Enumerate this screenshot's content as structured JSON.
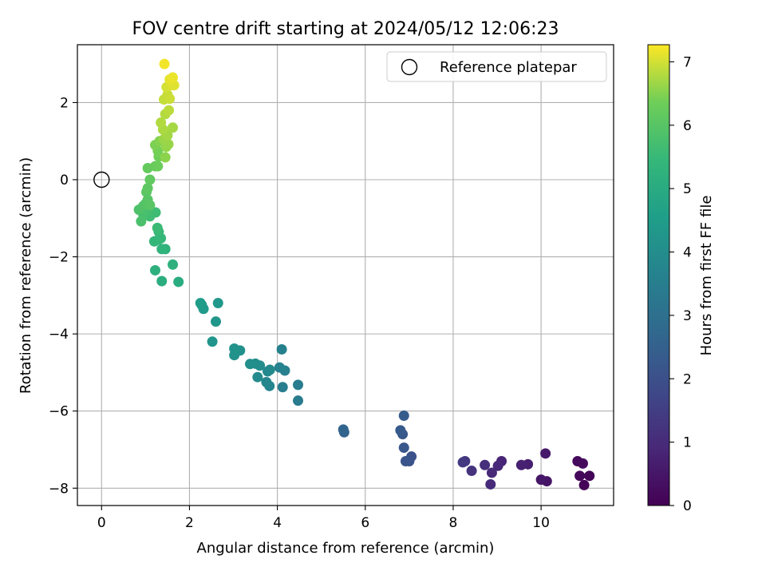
{
  "chart_data": {
    "type": "scatter",
    "title": "FOV centre drift starting at 2024/05/12 12:06:23",
    "xlabel": "Angular distance from reference (arcmin)",
    "ylabel": "Rotation from reference (arcmin)",
    "xlim": [
      -0.55,
      11.65
    ],
    "ylim": [
      -8.45,
      3.5
    ],
    "xticks": [
      0,
      2,
      4,
      6,
      8,
      10
    ],
    "yticks": [
      -8,
      -6,
      -4,
      -2,
      0,
      2
    ],
    "grid": true,
    "legend": {
      "placement": "upper-right",
      "entries": [
        "Reference platepar"
      ]
    },
    "reference_point": {
      "label": "Reference platepar",
      "x": 0,
      "y": 0
    },
    "colorbar": {
      "label": "Hours from first FF file",
      "colormap": "viridis",
      "range": [
        0,
        7.27
      ],
      "ticks": [
        0,
        1,
        2,
        3,
        4,
        5,
        6,
        7
      ]
    },
    "series": [
      {
        "columns": [
          "x",
          "y",
          "hours"
        ],
        "points": [
          [
            10.98,
            -7.92,
            0.05
          ],
          [
            11.1,
            -7.68,
            0.1
          ],
          [
            10.88,
            -7.68,
            0.15
          ],
          [
            10.83,
            -7.3,
            0.2
          ],
          [
            10.95,
            -7.36,
            0.25
          ],
          [
            10.13,
            -7.82,
            0.45
          ],
          [
            10.0,
            -7.78,
            0.5
          ],
          [
            10.1,
            -7.1,
            0.55
          ],
          [
            9.7,
            -7.38,
            0.7
          ],
          [
            9.55,
            -7.4,
            0.75
          ],
          [
            9.1,
            -7.3,
            0.85
          ],
          [
            9.02,
            -7.42,
            0.9
          ],
          [
            8.88,
            -7.6,
            0.95
          ],
          [
            8.85,
            -7.9,
            1.0
          ],
          [
            8.72,
            -7.4,
            1.1
          ],
          [
            8.42,
            -7.55,
            1.2
          ],
          [
            8.27,
            -7.3,
            1.3
          ],
          [
            8.22,
            -7.33,
            1.35
          ],
          [
            7.05,
            -7.18,
            2.05
          ],
          [
            7.0,
            -7.3,
            2.1
          ],
          [
            6.92,
            -7.3,
            2.15
          ],
          [
            6.88,
            -6.95,
            2.2
          ],
          [
            6.85,
            -6.6,
            2.25
          ],
          [
            6.8,
            -6.5,
            2.3
          ],
          [
            6.88,
            -6.12,
            2.35
          ],
          [
            5.52,
            -6.55,
            2.6
          ],
          [
            5.5,
            -6.48,
            2.65
          ],
          [
            4.47,
            -5.73,
            3.4
          ],
          [
            4.47,
            -5.32,
            3.45
          ],
          [
            4.12,
            -5.38,
            3.5
          ],
          [
            4.17,
            -4.95,
            3.55
          ],
          [
            4.1,
            -4.4,
            3.6
          ],
          [
            4.05,
            -4.87,
            3.65
          ],
          [
            3.82,
            -5.35,
            3.7
          ],
          [
            3.75,
            -5.25,
            3.75
          ],
          [
            3.78,
            -4.97,
            3.8
          ],
          [
            3.83,
            -4.93,
            3.85
          ],
          [
            3.55,
            -5.12,
            3.9
          ],
          [
            3.6,
            -4.82,
            3.95
          ],
          [
            3.5,
            -4.77,
            4.0
          ],
          [
            3.38,
            -4.78,
            4.05
          ],
          [
            3.15,
            -4.43,
            4.1
          ],
          [
            3.02,
            -4.55,
            4.15
          ],
          [
            3.02,
            -4.38,
            4.2
          ],
          [
            2.52,
            -4.2,
            4.25
          ],
          [
            2.6,
            -3.68,
            4.3
          ],
          [
            2.65,
            -3.2,
            4.35
          ],
          [
            2.32,
            -3.35,
            4.4
          ],
          [
            2.28,
            -3.25,
            4.45
          ],
          [
            2.25,
            -3.2,
            4.5
          ],
          [
            1.75,
            -2.65,
            5.05
          ],
          [
            1.37,
            -2.63,
            5.1
          ],
          [
            1.22,
            -2.35,
            5.15
          ],
          [
            1.62,
            -2.2,
            5.2
          ],
          [
            1.45,
            -1.8,
            5.25
          ],
          [
            1.37,
            -1.8,
            5.3
          ],
          [
            1.3,
            -1.55,
            5.35
          ],
          [
            1.2,
            -1.6,
            5.4
          ],
          [
            1.35,
            -1.52,
            5.45
          ],
          [
            1.3,
            -1.35,
            5.5
          ],
          [
            1.27,
            -1.25,
            5.55
          ],
          [
            1.23,
            -0.85,
            5.6
          ],
          [
            1.1,
            -0.95,
            5.65
          ],
          [
            1.05,
            -0.8,
            5.7
          ],
          [
            0.95,
            -0.9,
            5.75
          ],
          [
            0.9,
            -1.08,
            5.8
          ],
          [
            0.85,
            -0.78,
            5.85
          ],
          [
            0.95,
            -0.68,
            5.9
          ],
          [
            1.0,
            -0.62,
            5.95
          ],
          [
            1.05,
            -0.52,
            6.0
          ],
          [
            1.1,
            -0.66,
            6.02
          ],
          [
            1.02,
            -0.32,
            6.05
          ],
          [
            1.05,
            -0.22,
            6.1
          ],
          [
            1.1,
            0.0,
            6.15
          ],
          [
            1.05,
            0.3,
            6.2
          ],
          [
            1.22,
            0.35,
            6.25
          ],
          [
            1.28,
            0.35,
            6.3
          ],
          [
            1.3,
            0.6,
            6.35
          ],
          [
            1.28,
            0.75,
            6.4
          ],
          [
            1.22,
            0.9,
            6.45
          ],
          [
            1.32,
            1.0,
            6.5
          ],
          [
            1.45,
            0.58,
            6.55
          ],
          [
            1.47,
            0.85,
            6.6
          ],
          [
            1.52,
            0.92,
            6.62
          ],
          [
            1.42,
            1.05,
            6.65
          ],
          [
            1.5,
            1.15,
            6.7
          ],
          [
            1.62,
            1.35,
            6.72
          ],
          [
            1.4,
            1.3,
            6.75
          ],
          [
            1.35,
            1.48,
            6.78
          ],
          [
            1.45,
            1.7,
            6.8
          ],
          [
            1.53,
            1.8,
            6.85
          ],
          [
            1.42,
            2.08,
            6.9
          ],
          [
            1.5,
            2.2,
            6.92
          ],
          [
            1.55,
            2.1,
            6.95
          ],
          [
            1.48,
            2.4,
            7.0
          ],
          [
            1.58,
            2.45,
            7.05
          ],
          [
            1.65,
            2.45,
            7.08
          ],
          [
            1.55,
            2.6,
            7.12
          ],
          [
            1.62,
            2.65,
            7.15
          ],
          [
            1.43,
            3.0,
            7.2
          ]
        ]
      }
    ]
  }
}
